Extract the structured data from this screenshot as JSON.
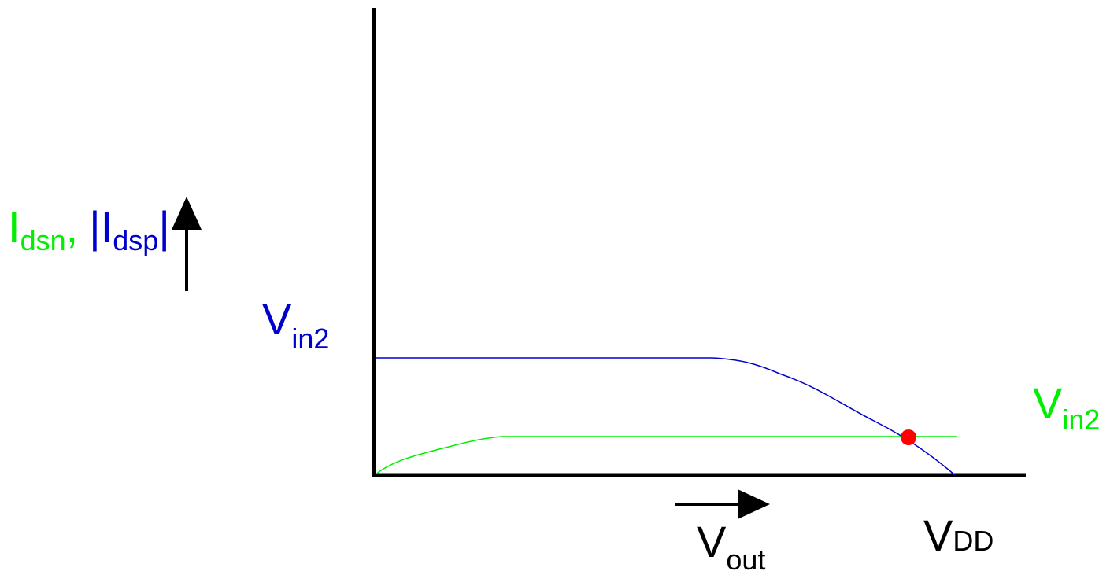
{
  "colors": {
    "axis": "#000000",
    "nmos": "#00ee00",
    "pmos": "#0000cc",
    "operating_point": "#ff0000"
  },
  "y_axis_label": {
    "i": "I",
    "dsn": "dsn",
    "comma": ",",
    "abs_open": "|",
    "i2": "I",
    "dsp": "dsp",
    "abs_close": "|"
  },
  "pmos_curve_label": {
    "main": "V",
    "sub": "in2"
  },
  "nmos_curve_label": {
    "main": "V",
    "sub": "in2"
  },
  "vdd_label": {
    "main": "V",
    "sub": "DD"
  },
  "x_axis_label": {
    "main": "V",
    "sub": "out"
  }
}
